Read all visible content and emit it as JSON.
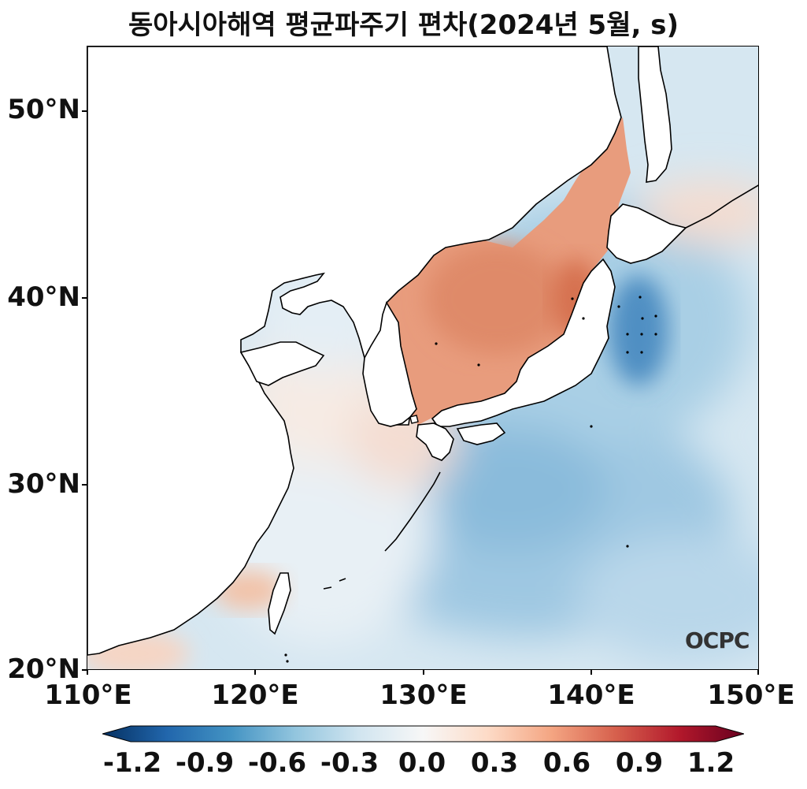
{
  "title": "동아시아해역 평균파주기 편차(2024년 5월, s)",
  "map": {
    "lon_range": [
      110,
      150
    ],
    "lat_range": [
      20,
      53.5
    ],
    "lat_ticks": [
      "50°N",
      "40°N",
      "30°N",
      "20°N"
    ],
    "lon_ticks": [
      "110°E",
      "120°E",
      "130°E",
      "140°E",
      "150°E"
    ],
    "land_color": "#ffffff",
    "coastline_color": "#000000"
  },
  "colorbar": {
    "colormap": "RdBu_r",
    "range": [
      -1.2,
      1.2
    ],
    "labels": [
      "-1.2",
      "-0.9",
      "-0.6",
      "-0.3",
      "0.0",
      "0.3",
      "0.6",
      "0.9",
      "1.2"
    ],
    "extend": "both"
  },
  "watermark": "OCPC"
}
